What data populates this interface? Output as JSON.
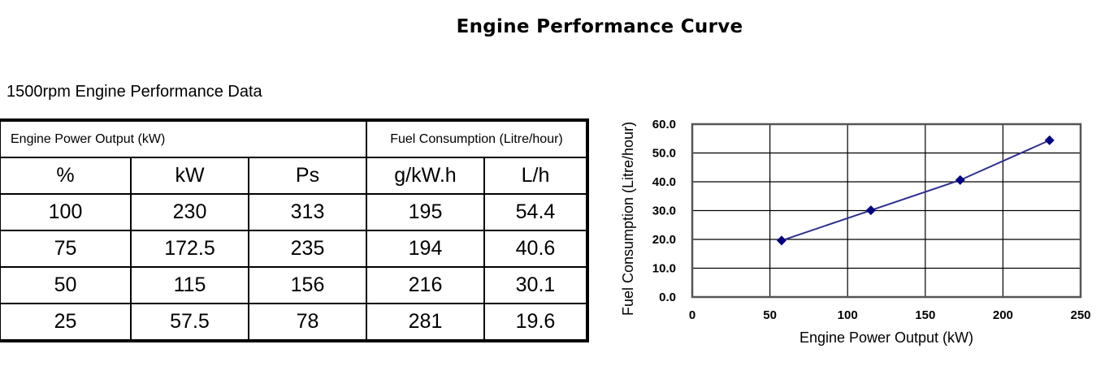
{
  "title": "Engine Performance Curve",
  "table": {
    "caption": "1500rpm Engine Performance Data",
    "group_headers": [
      "Engine Power Output (kW)",
      "Fuel Consumption (Litre/hour)"
    ],
    "columns": [
      "%",
      "kW",
      "Ps",
      "g/kW.h",
      "L/h"
    ],
    "rows": [
      [
        "100",
        "230",
        "313",
        "195",
        "54.4"
      ],
      [
        "75",
        "172.5",
        "235",
        "194",
        "40.6"
      ],
      [
        "50",
        "115",
        "156",
        "216",
        "30.1"
      ],
      [
        "25",
        "57.5",
        "78",
        "281",
        "19.6"
      ]
    ]
  },
  "chart_data": {
    "type": "line",
    "title": "",
    "xlabel": "Engine Power Output (kW)",
    "ylabel": "Fuel Consumption (Litre/hour)",
    "xlim": [
      0,
      250
    ],
    "ylim": [
      0,
      60
    ],
    "xticks": [
      "0",
      "50",
      "100",
      "150",
      "200",
      "250"
    ],
    "yticks": [
      "0.0",
      "10.0",
      "20.0",
      "30.0",
      "40.0",
      "50.0",
      "60.0"
    ],
    "grid": true,
    "series": [
      {
        "x": [
          57.5,
          115,
          172.5,
          230
        ],
        "y": [
          19.6,
          30.1,
          40.6,
          54.4
        ],
        "color": "#2e2e8f",
        "marker": "diamond",
        "marker_color": "#000080"
      }
    ]
  }
}
